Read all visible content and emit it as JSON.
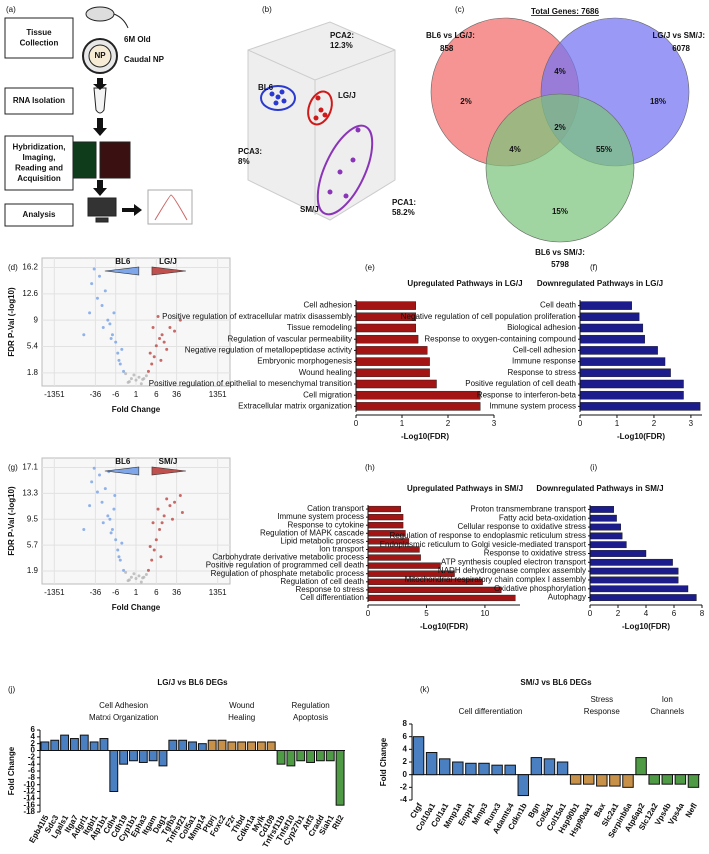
{
  "workflow": {
    "panel": "(a)",
    "steps": [
      [
        "Tissue",
        "Collection"
      ],
      [
        "RNA Isolation"
      ],
      [
        "Hybridization,",
        "Imaging,",
        "Reading and",
        "Acquisition"
      ],
      [
        "Analysis"
      ]
    ],
    "sample": [
      "6M Old",
      "Caudal NP"
    ],
    "tube_label": "NP"
  },
  "pca": {
    "panel": "(b)",
    "axes": [
      [
        "PCA2:",
        "12.3%"
      ],
      [
        "PCA3:",
        "8%"
      ],
      [
        "PCA1:",
        "58.2%"
      ]
    ],
    "groups": [
      "BL6",
      "LG/J",
      "SM/J"
    ]
  },
  "chart_data": [
    {
      "type": "venn",
      "panel": "(c)",
      "title": "Total Genes: 7686",
      "sets": [
        {
          "name": "BL6 vs LG/J:",
          "size": 858,
          "color": "#f26b6b"
        },
        {
          "name": "LG/J vs SM/J:",
          "size": 6078,
          "color": "#7373f2"
        },
        {
          "name": "BL6 vs SM/J:",
          "size": 5798,
          "color": "#7cc47c"
        }
      ],
      "values": [
        2,
        18,
        15,
        4,
        4,
        55,
        2
      ],
      "value_labels": [
        "2%",
        "18%",
        "15%",
        "4%",
        "4%",
        "55%",
        "2%"
      ]
    },
    {
      "type": "volcano",
      "panel": "(d)",
      "xlabel": "Fold Change",
      "ylabel": "FDR P-Val (-log10)",
      "xlim": [
        -4000,
        4000
      ],
      "xticks": [
        -1351,
        -36,
        -6,
        1,
        6,
        36,
        1351
      ],
      "ylim": [
        0,
        17.5
      ],
      "yticks": [
        1.8,
        5.4,
        9,
        12.6,
        16.2
      ],
      "grid": true,
      "series": [
        {
          "name": "BL6",
          "color": "#7ea6e8",
          "x": [
            -3,
            -4,
            -5,
            -6,
            -8,
            -10,
            -12,
            -20,
            -30,
            -50,
            -3.5,
            -7,
            -15,
            -25,
            -40,
            -4.5,
            -9,
            -18,
            -60,
            -100
          ],
          "values": [
            2,
            3,
            4.5,
            6,
            7,
            8.5,
            9,
            11,
            12,
            14,
            5,
            10,
            13,
            15,
            16,
            3.5,
            6.5,
            8,
            10,
            7
          ]
        },
        {
          "name": "LG/J",
          "color": "#c0504d",
          "x": [
            3,
            4,
            5,
            6,
            8,
            10,
            12,
            20,
            30,
            50,
            3.5,
            7,
            15,
            4.5,
            9
          ],
          "values": [
            2,
            3,
            4,
            5.5,
            6.5,
            7,
            6,
            8,
            7.5,
            9,
            4.5,
            9.5,
            5,
            8,
            3.5
          ]
        },
        {
          "color": "#b8b8b8",
          "x": [
            -2,
            -1.5,
            -1.2,
            1,
            1.3,
            1.6,
            2,
            -2.5,
            2.5,
            -1.8,
            1.8
          ],
          "values": [
            0.5,
            1,
            1.5,
            0.8,
            1.2,
            0.3,
            1,
            1.7,
            1.4,
            0.6,
            0.9
          ]
        }
      ]
    },
    {
      "type": "hbar",
      "panel": "(e)",
      "title": "Upregulated Pathways in LG/J",
      "xlabel": "-Log10(FDR)",
      "color": "#a31515",
      "xlim": [
        0,
        3
      ],
      "xticks": [
        0,
        1,
        2,
        3
      ],
      "categories": [
        "Cell adhesion",
        "Positive regulation of extracellular matrix disassembly",
        "Tissue remodeling",
        "Regulation of vascular permeability",
        "Negative regulation of metallopeptidase activity",
        "Embryonic morphogenesis",
        "Wound healing",
        "Positive regulation of epithelial to mesenchymal transition",
        "Cell migration",
        "Extracellular matrix organization"
      ],
      "values": [
        1.3,
        1.3,
        1.3,
        1.35,
        1.55,
        1.6,
        1.6,
        1.75,
        2.7,
        2.7
      ]
    },
    {
      "type": "hbar",
      "panel": "(f)",
      "title": "Downregulated Pathways in LG/J",
      "xlabel": "-Log10(FDR)",
      "color": "#1c1c8c",
      "xlim": [
        0,
        3.3
      ],
      "xticks": [
        0,
        1,
        2,
        3
      ],
      "categories": [
        "Cell death",
        "Negative regulation of cell population proliferation",
        "Biological adhesion",
        "Response to oxygen-containing compound",
        "Cell-cell adhesion",
        "Immune response",
        "Response to stress",
        "Positive regulation of cell death",
        "Response to interferon-beta",
        "Immune system process"
      ],
      "values": [
        1.4,
        1.6,
        1.7,
        1.75,
        2.1,
        2.3,
        2.45,
        2.8,
        2.8,
        3.25
      ]
    },
    {
      "type": "volcano",
      "panel": "(g)",
      "xlabel": "Fold Change",
      "ylabel": "FDR P-Val (-log10)",
      "xlim": [
        -4000,
        4000
      ],
      "xticks": [
        -1351,
        -36,
        -6,
        1,
        6,
        36,
        1351
      ],
      "ylim": [
        0,
        18.5
      ],
      "yticks": [
        1.9,
        5.7,
        9.5,
        13.3,
        17.1
      ],
      "grid": true,
      "series": [
        {
          "name": "BL6",
          "color": "#7ea6e8",
          "x": [
            -3,
            -4,
            -5,
            -6,
            -8,
            -10,
            -12,
            -20,
            -30,
            -50,
            -3.5,
            -7,
            -15,
            -25,
            -40,
            -4.5,
            -9,
            -18,
            -60,
            -100,
            -6.5,
            -11
          ],
          "values": [
            2,
            3.5,
            5,
            6.5,
            8,
            9.5,
            10,
            12,
            13.5,
            15,
            6,
            11,
            14,
            16,
            17,
            4,
            7.5,
            9,
            11.5,
            8,
            13,
            16.5
          ]
        },
        {
          "name": "SM/J",
          "color": "#c0504d",
          "x": [
            3,
            4,
            5,
            6,
            8,
            10,
            12,
            20,
            30,
            50,
            3.5,
            7,
            15,
            4.5,
            9,
            25,
            60
          ],
          "values": [
            2,
            3.5,
            5,
            6.5,
            8,
            9,
            10,
            11.5,
            12,
            13,
            5.5,
            11,
            12.5,
            9,
            4,
            9.5,
            10.5
          ]
        },
        {
          "color": "#b8b8b8",
          "x": [
            -2,
            -1.5,
            -1.2,
            1,
            1.3,
            1.6,
            2,
            -2.5,
            2.5,
            -1.8,
            1.8
          ],
          "values": [
            0.5,
            1,
            1.5,
            0.8,
            1.2,
            0.3,
            1,
            1.7,
            1.4,
            0.6,
            0.9
          ]
        }
      ]
    },
    {
      "type": "hbar",
      "panel": "(h)",
      "title": "Upregulated Pathways in SM/J",
      "xlabel": "-Log10(FDR)",
      "color": "#a31515",
      "xlim": [
        0,
        13
      ],
      "xticks": [
        0,
        5,
        10
      ],
      "categories": [
        "Cation transport",
        "Immune system process",
        "Response to cytokine",
        "Regulation of MAPK cascade",
        "Lipid metabolic process",
        "Ion transport",
        "Carbohydrate derivative metabolic process",
        "Positive regulation of programmed cell death",
        "Regulation of phosphate metabolic process",
        "Regulation of cell death",
        "Response to stress",
        "Cell differentiation"
      ],
      "values": [
        2.8,
        3,
        3,
        3.2,
        3.5,
        4.4,
        4.5,
        6.2,
        7.4,
        9.8,
        11.4,
        12.6
      ]
    },
    {
      "type": "hbar",
      "panel": "(i)",
      "title": "Downregulated Pathways in SM/J",
      "xlabel": "-Log10(FDR)",
      "color": "#1c1c8c",
      "xlim": [
        0,
        8
      ],
      "xticks": [
        0,
        2,
        4,
        6,
        8
      ],
      "categories": [
        "Proton transmembrane transport",
        "Fatty acid beta-oxidation",
        "Cellular response to oxidative stress",
        "Regulation of response to endoplasmic reticulum stress",
        "Endoplasmic reticulum to Golgi vesicle-mediated transport",
        "Response to oxidative stress",
        "ATP synthesis coupled electron transport",
        "NADH dehydrogenase complex assembly",
        "Mitochondrial respiratory chain complex I assembly",
        "Oxidative phosphorylation",
        "Autophagy"
      ],
      "values": [
        1.7,
        1.9,
        2.2,
        2.3,
        2.6,
        4,
        5.9,
        6.3,
        6.3,
        7,
        7.6
      ]
    },
    {
      "type": "bar",
      "panel": "(j)",
      "title": "LG/J vs BL6 DEGs",
      "ylabel": "Fold Change",
      "ylim": [
        -18,
        6
      ],
      "yticks": [
        6,
        4,
        2,
        0,
        -2,
        -4,
        -6,
        -8,
        -10,
        -12,
        -14,
        -16,
        -18
      ],
      "groups": [
        {
          "name": [
            "Cell Adhesion",
            "Matrxi Organization"
          ],
          "color": "#4a7fc1",
          "categories": [
            "Epb41l5",
            "Sdc3",
            "Lgals1",
            "Itga7",
            "Adgrl1",
            "Itgbl1",
            "Atp1b1",
            "Cdh4",
            "Cdh19",
            "Cyp1b1",
            "Epha3",
            "Itgam",
            "Dag1",
            "Tgfb3",
            "Tnfrsf21",
            "Col5a1",
            "Mmp14"
          ],
          "values": [
            2.5,
            3,
            4.5,
            3.5,
            4.5,
            2.5,
            3.5,
            -12,
            -4,
            -3,
            -3.5,
            -3,
            -4.5,
            3,
            3,
            2.5,
            2
          ]
        },
        {
          "name": [
            "Wound",
            "Healing"
          ],
          "color": "#c8914a",
          "categories": [
            "Ptprj",
            "Foxc2",
            "F2r",
            "Thbd",
            "Cdkn1a",
            "Mylk",
            "Cd109"
          ],
          "values": [
            3,
            3,
            2.5,
            2.5,
            2.5,
            2.5,
            2.5
          ]
        },
        {
          "name": [
            "Regulation",
            "Apoptosis"
          ],
          "color": "#4f9a45",
          "categories": [
            "Tnfrsf11b",
            "Tnfsf10",
            "Cyp27b1",
            "Atf3",
            "Cradd",
            "Siah1",
            "Rtl2"
          ],
          "values": [
            -4,
            -4.5,
            -3,
            -3.5,
            -3,
            -3,
            -16
          ]
        }
      ]
    },
    {
      "type": "bar",
      "panel": "(k)",
      "title": "SM/J vs BL6 DEGs",
      "ylabel": "Fold Change",
      "ylim": [
        -4,
        8
      ],
      "yticks": [
        8,
        6,
        4,
        2,
        0,
        -2,
        -4
      ],
      "groups": [
        {
          "name": [
            "Cell differentiation"
          ],
          "color": "#4a7fc1",
          "categories": [
            "Ctgf",
            "Col10a1",
            "Col1a1",
            "Mmp1a",
            "Enpp1",
            "Mmp3",
            "Runx3",
            "Adamts4",
            "Cdkn1b",
            "Bgn",
            "Col5a1",
            "Col15a1"
          ],
          "values": [
            6,
            3.5,
            2.5,
            2,
            1.8,
            1.8,
            1.5,
            1.5,
            -3.3,
            2.7,
            2.5,
            2
          ]
        },
        {
          "name": [
            "Stress",
            "Response"
          ],
          "color": "#c8914a",
          "categories": [
            "Hsp90b1",
            "Hsp90aa1",
            "Bax",
            "Slc2a1",
            "Serpinb6a"
          ],
          "values": [
            -1.5,
            -1.5,
            -1.8,
            -1.8,
            -2
          ]
        },
        {
          "name": [
            "Ion",
            "Channels"
          ],
          "color": "#4f9a45",
          "categories": [
            "Atp6ap2",
            "Slc12a2",
            "Vps4b",
            "Vps4a",
            "Nefl"
          ],
          "values": [
            2.7,
            -1.5,
            -1.5,
            -1.5,
            -2
          ]
        }
      ]
    }
  ]
}
